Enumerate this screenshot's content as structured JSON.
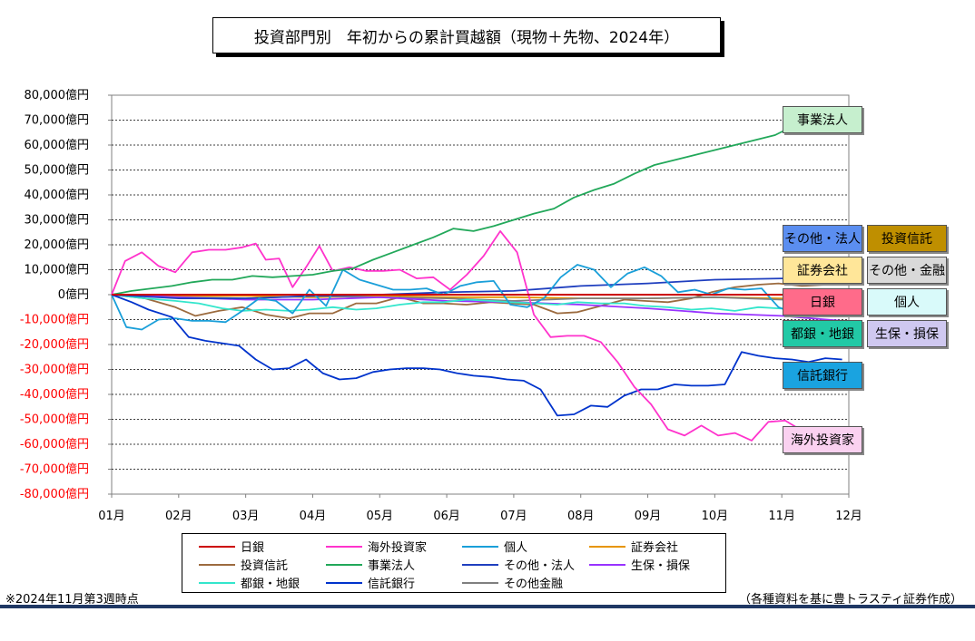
{
  "title": "投資部門別　年初からの累計買越額（現物＋先物、2024年）",
  "footnote": "※2024年11月第3週時点",
  "source": "（各種資料を基に豊トラスティ証券作成）",
  "chart_data": {
    "type": "line",
    "title": "投資部門別　年初からの累計買越額（現物＋先物、2024年）",
    "xlabel": "",
    "ylabel": "",
    "x_ticks": [
      "01月",
      "02月",
      "03月",
      "04月",
      "05月",
      "06月",
      "07月",
      "08月",
      "09月",
      "10月",
      "11月",
      "12月"
    ],
    "y_ticks": [
      "80,000億円",
      "70,000億円",
      "60,000億円",
      "50,000億円",
      "40,000億円",
      "30,000億円",
      "20,000億円",
      "10,000億円",
      "0億円",
      "-10,000億円",
      "-20,000億円",
      "-30,000億円",
      "-40,000億円",
      "-50,000億円",
      "-60,000億円",
      "-70,000億円",
      "-80,000億円"
    ],
    "ylim": [
      -80000,
      80000
    ],
    "xlim": [
      0,
      11
    ],
    "grid": true,
    "legend_position": "bottom",
    "series": [
      {
        "name": "日銀",
        "color": "#cc0000",
        "x": [
          0,
          11
        ],
        "values": [
          0,
          0
        ]
      },
      {
        "name": "海外投資家",
        "color": "#ff33cc",
        "x": [
          0,
          0.2,
          0.45,
          0.7,
          0.95,
          1.2,
          1.45,
          1.7,
          1.95,
          2.15,
          2.3,
          2.5,
          2.7,
          2.9,
          3.1,
          3.3,
          3.55,
          3.8,
          4.05,
          4.3,
          4.55,
          4.8,
          5.05,
          5.3,
          5.55,
          5.8,
          6.05,
          6.3,
          6.55,
          6.8,
          7.05,
          7.3,
          7.55,
          7.8,
          8.05,
          8.3,
          8.55,
          8.8,
          9.05,
          9.3,
          9.55,
          9.8,
          10.05,
          10.3,
          10.55,
          10.8
        ],
        "values": [
          0,
          13500,
          17000,
          11500,
          9000,
          17000,
          18000,
          18000,
          19000,
          20500,
          14000,
          14500,
          3000,
          11000,
          19500,
          9500,
          11000,
          9500,
          9500,
          10000,
          6500,
          7000,
          2000,
          8000,
          15500,
          25500,
          17000,
          -8000,
          -17000,
          -16500,
          -16500,
          -19000,
          -27000,
          -37000,
          -44000,
          -54000,
          -56500,
          -52500,
          -56500,
          -55500,
          -58500,
          -51000,
          -50500,
          -54500,
          -54500,
          -54500
        ]
      },
      {
        "name": "個人",
        "color": "#1a9fd9",
        "x": [
          0,
          0.22,
          0.45,
          0.7,
          0.95,
          1.2,
          1.45,
          1.7,
          1.95,
          2.2,
          2.45,
          2.7,
          2.95,
          3.2,
          3.45,
          3.7,
          3.95,
          4.2,
          4.45,
          4.7,
          4.95,
          5.2,
          5.45,
          5.7,
          5.95,
          6.2,
          6.45,
          6.7,
          6.95,
          7.2,
          7.45,
          7.7,
          7.95,
          8.2,
          8.45,
          8.7,
          8.95,
          9.2,
          9.45,
          9.7,
          9.95,
          10.2,
          10.45,
          10.7,
          10.95
        ],
        "values": [
          0,
          -13000,
          -14000,
          -10000,
          -9500,
          -10500,
          -10500,
          -11000,
          -6500,
          -1500,
          -2500,
          -7500,
          2000,
          -4500,
          10000,
          6000,
          4000,
          2000,
          2000,
          2500,
          0,
          3500,
          5000,
          5500,
          -4000,
          -5000,
          -1500,
          7000,
          12000,
          10000,
          3000,
          8500,
          11000,
          7500,
          1000,
          2000,
          0,
          2500,
          2000,
          2500,
          -5000,
          -7500,
          -5000,
          -6500,
          -4000
        ]
      },
      {
        "name": "証券会社",
        "color": "#e69500",
        "x": [
          0,
          1,
          2,
          3,
          4,
          5,
          6,
          7,
          8,
          9,
          10,
          10.7
        ],
        "values": [
          0,
          -500,
          -500,
          -1000,
          -500,
          -1000,
          -1000,
          -1500,
          -1500,
          -1000,
          -1500,
          -1500
        ]
      },
      {
        "name": "投資信託",
        "color": "#9c6b3f",
        "x": [
          0,
          0.5,
          0.95,
          1.25,
          1.6,
          1.95,
          2.3,
          2.65,
          2.95,
          3.3,
          3.65,
          3.95,
          4.3,
          4.65,
          4.95,
          5.3,
          5.65,
          5.95,
          6.3,
          6.65,
          6.95,
          7.3,
          7.65,
          7.95,
          8.3,
          8.65,
          8.95,
          9.3,
          9.65,
          9.95,
          10.3,
          10.65,
          10.9
        ],
        "values": [
          0,
          -1500,
          -5000,
          -8500,
          -6500,
          -5000,
          -8000,
          -9500,
          -7500,
          -7500,
          -3500,
          -3500,
          -1000,
          -3500,
          -3500,
          -4000,
          -3000,
          -3500,
          -4000,
          -7500,
          -7000,
          -4500,
          -2000,
          -2500,
          -3000,
          -1500,
          1000,
          3000,
          4000,
          4500,
          3500,
          4000,
          4000
        ]
      },
      {
        "name": "事業法人",
        "color": "#22a85a",
        "x": [
          0,
          0.3,
          0.6,
          0.9,
          1.2,
          1.5,
          1.8,
          2.1,
          2.4,
          2.7,
          3,
          3.3,
          3.6,
          3.9,
          4.2,
          4.5,
          4.8,
          5.1,
          5.4,
          5.7,
          6,
          6.3,
          6.6,
          6.9,
          7.2,
          7.5,
          7.8,
          8.1,
          8.4,
          8.7,
          9,
          9.3,
          9.6,
          9.9,
          10.2,
          10.5,
          10.8,
          10.9
        ],
        "values": [
          0,
          1500,
          2500,
          3500,
          5000,
          6000,
          6000,
          7500,
          7000,
          7500,
          8000,
          9500,
          10500,
          14000,
          17000,
          20000,
          23000,
          26500,
          25500,
          27500,
          30000,
          32500,
          34500,
          39000,
          42000,
          44500,
          48500,
          52000,
          54000,
          56000,
          58000,
          60000,
          62000,
          64000,
          68000,
          69500,
          70000,
          70000
        ]
      },
      {
        "name": "その他・法人",
        "color": "#1f3fbf",
        "x": [
          0,
          1,
          2,
          3,
          4,
          5,
          6,
          7,
          8,
          9,
          10,
          10.9
        ],
        "values": [
          0,
          -1500,
          -1500,
          -500,
          0,
          1000,
          1500,
          3500,
          4500,
          6000,
          6500,
          7000
        ]
      },
      {
        "name": "生保・損保",
        "color": "#9933ff",
        "x": [
          0,
          1,
          2,
          3,
          4,
          5,
          6,
          7,
          8,
          9,
          10,
          10.9
        ],
        "values": [
          0,
          -1000,
          -2000,
          -2000,
          -1000,
          -2500,
          -3000,
          -4000,
          -5500,
          -7500,
          -8500,
          -10500
        ]
      },
      {
        "name": "都銀・地銀",
        "color": "#33e6cc",
        "x": [
          0,
          0.5,
          0.95,
          1.3,
          1.65,
          1.95,
          2.3,
          2.65,
          2.95,
          3.3,
          3.65,
          3.95,
          4.3,
          4.65,
          4.95,
          5.3,
          5.65,
          5.95,
          6.3,
          6.65,
          6.95,
          7.3,
          7.65,
          7.95,
          8.3,
          8.65,
          8.95,
          9.3,
          9.65,
          9.95,
          10.3,
          10.65,
          10.95
        ],
        "values": [
          0,
          -1500,
          -2500,
          -3500,
          -5500,
          -6500,
          -6000,
          -6500,
          -6000,
          -5000,
          -6000,
          -5500,
          -4000,
          -3000,
          -3000,
          -2000,
          -2500,
          -3000,
          -3500,
          -4000,
          -3000,
          -3500,
          -3500,
          -4500,
          -5000,
          -6000,
          -5500,
          -6500,
          -5000,
          -5500,
          -6000,
          -8500,
          -8500
        ]
      },
      {
        "name": "信託銀行",
        "color": "#0033cc",
        "x": [
          0,
          0.3,
          0.55,
          0.9,
          1.15,
          1.4,
          1.65,
          1.9,
          2.15,
          2.4,
          2.65,
          2.9,
          3.15,
          3.4,
          3.65,
          3.9,
          4.15,
          4.4,
          4.65,
          4.9,
          5.15,
          5.4,
          5.65,
          5.9,
          6.15,
          6.4,
          6.65,
          6.9,
          7.15,
          7.4,
          7.65,
          7.9,
          8.15,
          8.4,
          8.65,
          8.9,
          9.15,
          9.4,
          9.65,
          9.9,
          10.15,
          10.4,
          10.65,
          10.9
        ],
        "values": [
          0,
          -3000,
          -6000,
          -9000,
          -17000,
          -18500,
          -19500,
          -20500,
          -26000,
          -30000,
          -29500,
          -26000,
          -31500,
          -34000,
          -33500,
          -31000,
          -30000,
          -29500,
          -29500,
          -30000,
          -31500,
          -32500,
          -33000,
          -34000,
          -34500,
          -38000,
          -48500,
          -48000,
          -44500,
          -45000,
          -40500,
          -38000,
          -38000,
          -36000,
          -36500,
          -36500,
          -36000,
          -23000,
          -24500,
          -25500,
          -26000,
          -27000,
          -25500,
          -26000
        ]
      },
      {
        "name": "その他金融",
        "color": "#7f7f7f",
        "x": [
          0,
          1,
          2,
          3,
          4,
          5,
          6,
          7,
          8,
          9,
          10,
          10.9
        ],
        "values": [
          0,
          -1000,
          -1500,
          -500,
          -1000,
          -1500,
          -2500,
          -1500,
          -1500,
          -1000,
          -2000,
          -1500
        ]
      }
    ]
  },
  "callouts": [
    {
      "label": "事業法人",
      "bg": "#c6efce"
    },
    {
      "label": "その他・法人",
      "bg": "#5b8ef0"
    },
    {
      "label": "投資信託",
      "bg": "#bf8f00"
    },
    {
      "label": "証券会社",
      "bg": "#ffe699"
    },
    {
      "label": "その他・金融",
      "bg": "#d9d9d9"
    },
    {
      "label": "日銀",
      "bg": "#ff6b8a"
    },
    {
      "label": "個人",
      "bg": "#d9fafa"
    },
    {
      "label": "都銀・地銀",
      "bg": "#22c9a6"
    },
    {
      "label": "生保・損保",
      "bg": "#cfc8f0"
    },
    {
      "label": "信託銀行",
      "bg": "#1aa3e0"
    },
    {
      "label": "海外投資家",
      "bg": "#fad1f0"
    }
  ],
  "legend": [
    {
      "label": "日銀",
      "color": "#cc0000"
    },
    {
      "label": "海外投資家",
      "color": "#ff33cc"
    },
    {
      "label": "個人",
      "color": "#1a9fd9"
    },
    {
      "label": "証券会社",
      "color": "#e69500"
    },
    {
      "label": "投資信託",
      "color": "#9c6b3f"
    },
    {
      "label": "事業法人",
      "color": "#22a85a"
    },
    {
      "label": "その他・法人",
      "color": "#1f3fbf"
    },
    {
      "label": "生保・損保",
      "color": "#9933ff"
    },
    {
      "label": "都銀・地銀",
      "color": "#33e6cc"
    },
    {
      "label": "信託銀行",
      "color": "#0033cc"
    },
    {
      "label": "その他金融",
      "color": "#7f7f7f"
    }
  ]
}
